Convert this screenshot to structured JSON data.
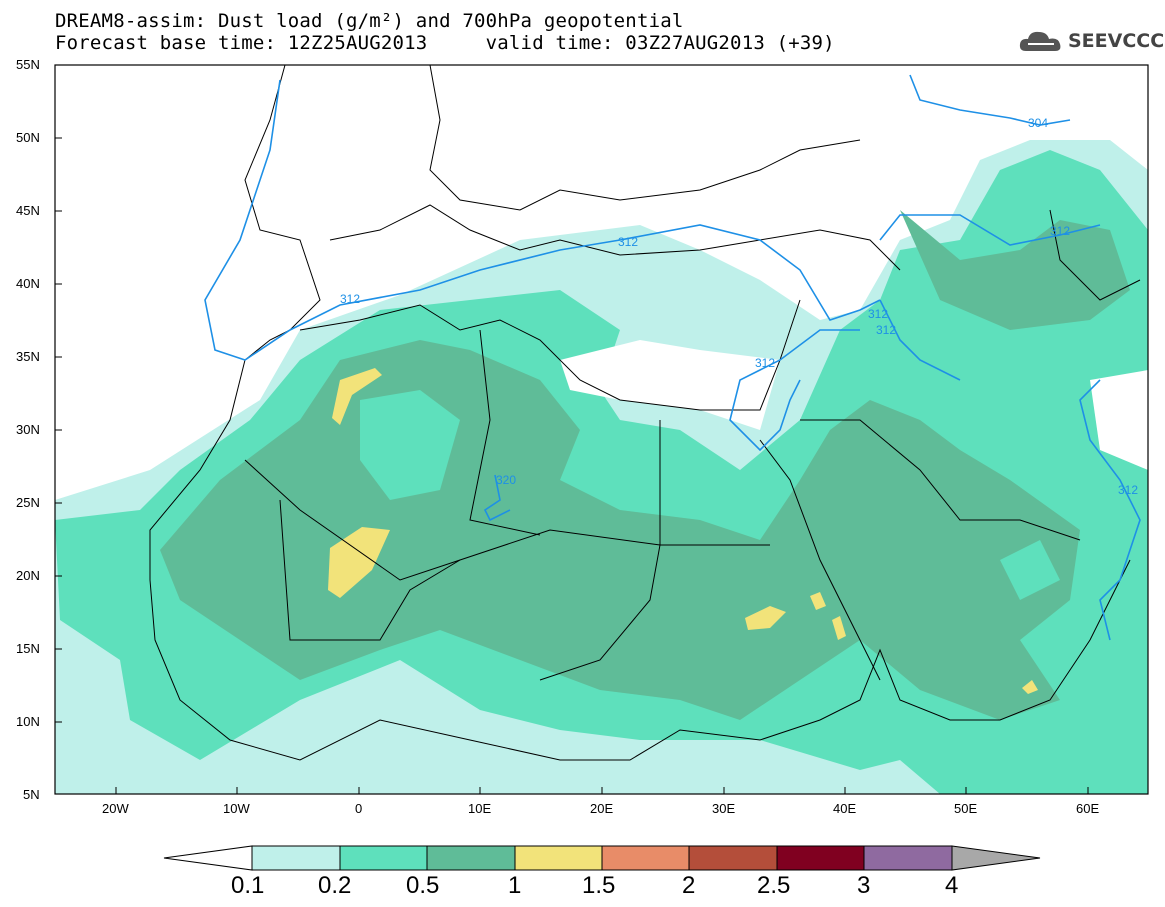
{
  "title": {
    "line1": "DREAM8-assim: Dust load (g/m²) and 700hPa geopotential",
    "line2": "Forecast base time: 12Z25AUG2013     valid time: 03Z27AUG2013 (+39)"
  },
  "logo": {
    "text": "SEEVCCC",
    "icon": "cloud-icon"
  },
  "map": {
    "lat_labels": [
      "55N",
      "50N",
      "45N",
      "40N",
      "35N",
      "30N",
      "25N",
      "20N",
      "15N",
      "10N",
      "5N"
    ],
    "lon_labels": [
      "20W",
      "10W",
      "0",
      "10E",
      "20E",
      "30E",
      "40E",
      "50E",
      "60E"
    ],
    "contour_labels": [
      "304",
      "312",
      "312",
      "312",
      "312",
      "312",
      "312",
      "312",
      "320"
    ],
    "colors": {
      "land_border": "#000000",
      "contour": "#1e90e6"
    }
  },
  "colorbar": {
    "labels": [
      "0.1",
      "0.2",
      "0.5",
      "1",
      "1.5",
      "2",
      "2.5",
      "3",
      "4"
    ],
    "colors": [
      "#ffffff",
      "#bff0ea",
      "#5ee0bc",
      "#5fbc98",
      "#f2e37a",
      "#e88c68",
      "#b44e3a",
      "#800020",
      "#8f6aa0",
      "#a8a8a8"
    ]
  }
}
